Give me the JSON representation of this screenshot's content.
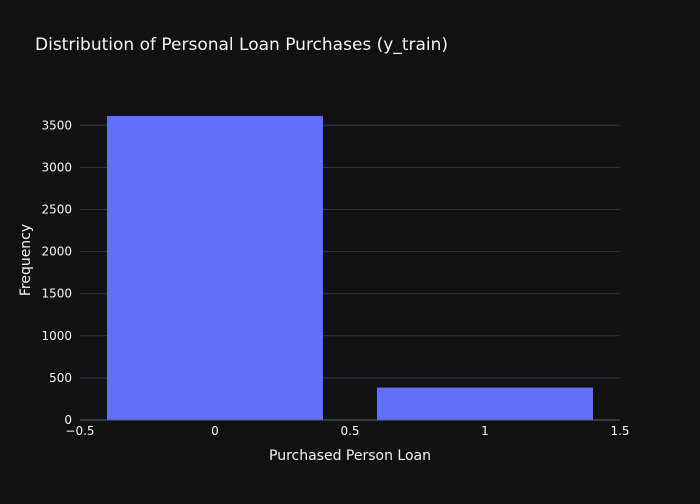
{
  "chart_data": {
    "type": "bar",
    "title": "Distribution of Personal Loan Purchases (y_train)",
    "xlabel": "Purchased Person Loan",
    "ylabel": "Frequency",
    "categories": [
      0,
      1
    ],
    "values": [
      3610,
      385
    ],
    "bar_width": 0.8,
    "xlim": [
      -0.5,
      1.5
    ],
    "ylim": [
      0,
      3800
    ],
    "x_ticks": [
      -0.5,
      0,
      0.5,
      1,
      1.5
    ],
    "x_tick_labels": [
      "−0.5",
      "0",
      "0.5",
      "1",
      "1.5"
    ],
    "y_ticks": [
      0,
      500,
      1000,
      1500,
      2000,
      2500,
      3000,
      3500
    ],
    "y_tick_labels": [
      "0",
      "500",
      "1000",
      "1500",
      "2000",
      "2500",
      "3000",
      "3500"
    ],
    "grid": true,
    "colors": {
      "background": "#111111",
      "bar": "#636efa",
      "grid": "#283442",
      "text": "#f2f5fa"
    }
  }
}
